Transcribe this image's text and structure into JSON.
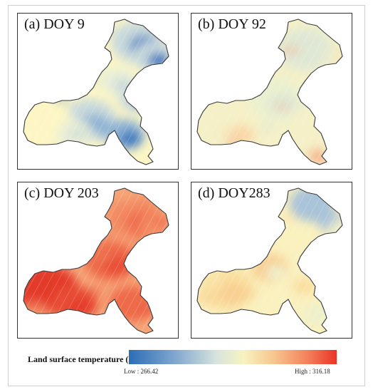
{
  "panels": [
    {
      "label": "(a) DOY 9",
      "fill_colors": [
        "#fdf6c4",
        "#e9efd6",
        "#c8d9dd",
        "#8fb3d3",
        "#3a78bd"
      ]
    },
    {
      "label": "(b) DOY 92",
      "fill_colors": [
        "#f5f0c7",
        "#eaf0cf",
        "#dfe8d5",
        "#fad8a8",
        "#f5b08a"
      ]
    },
    {
      "label": "(c) DOY 203",
      "fill_colors": [
        "#f6a478",
        "#f38a62",
        "#ee6a4a",
        "#e84d34",
        "#e33a2b"
      ]
    },
    {
      "label": "(d) DOY283",
      "fill_colors": [
        "#faf1bf",
        "#f9df9f",
        "#f8cf92",
        "#eef0cc",
        "#a9c3d8"
      ]
    }
  ],
  "legend": {
    "title": "Land surface temperature (K)",
    "low_label": "Low : 266.42",
    "high_label": "High : 316.18",
    "gradient_colors": [
      "#2c6db5",
      "#7fa6cf",
      "#d7e3dd",
      "#f7f3c2",
      "#f7c58e",
      "#f3815a",
      "#ea3326"
    ]
  }
}
